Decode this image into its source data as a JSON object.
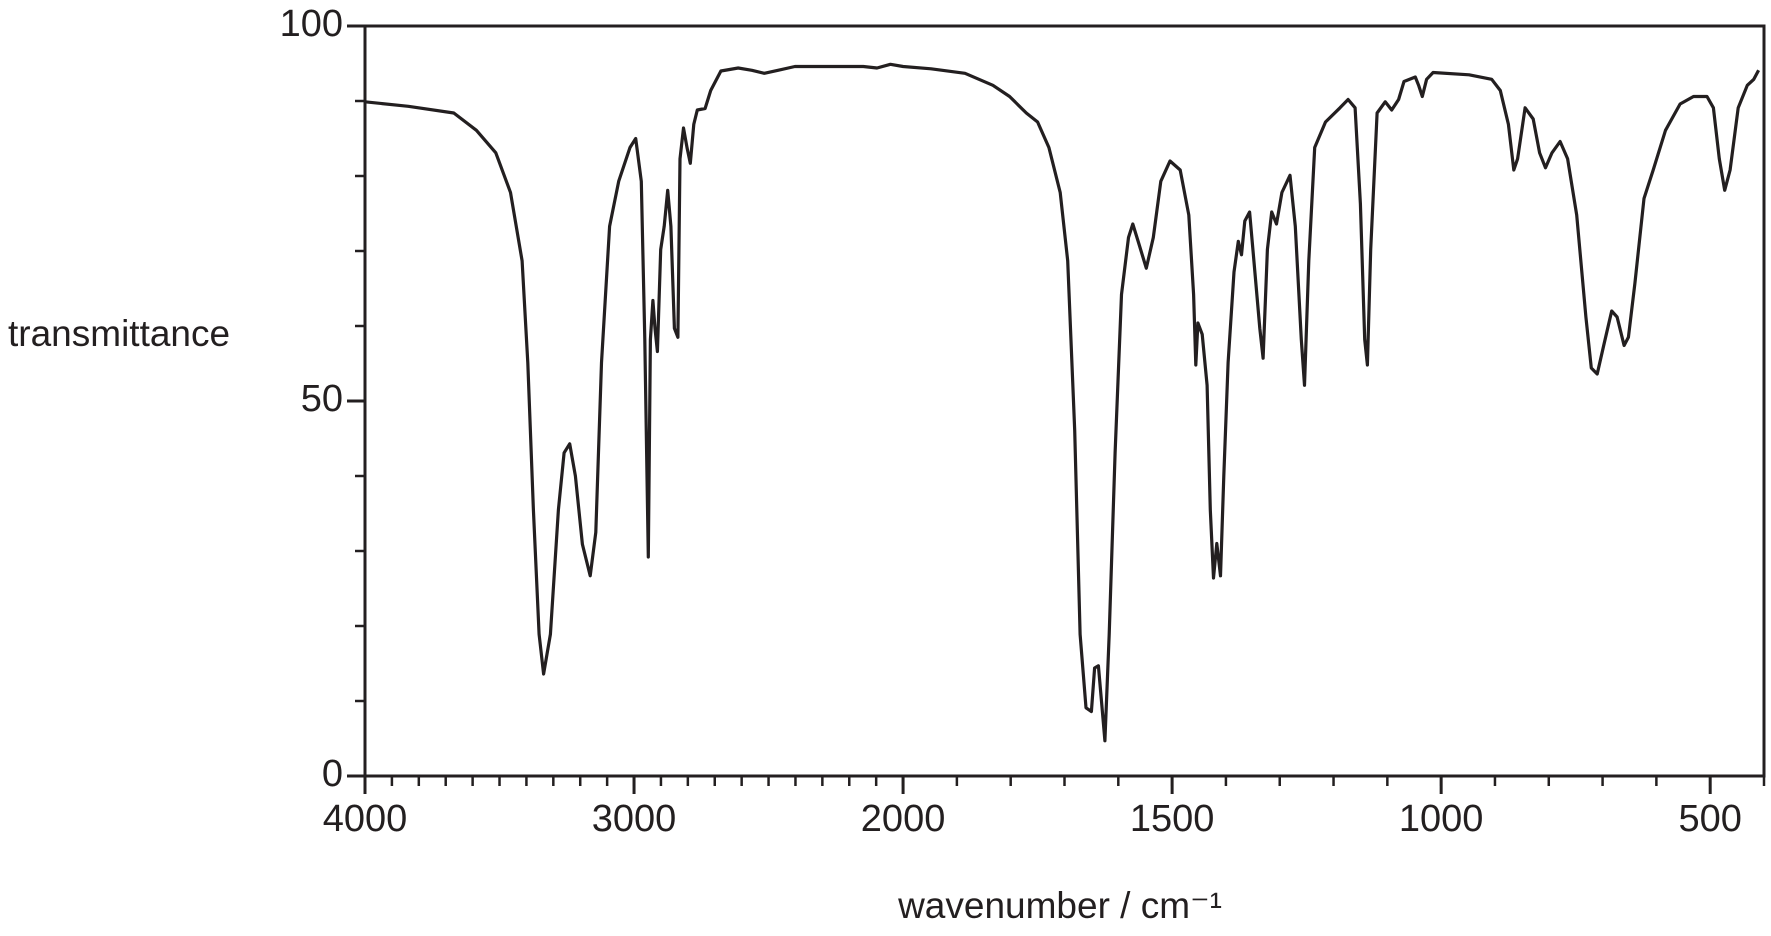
{
  "chart_data": {
    "type": "line",
    "xlabel": "wavenumber / cm⁻¹",
    "ylabel": "transmittance",
    "xlim": [
      4000,
      400
    ],
    "xticks": [
      4000,
      3000,
      2000,
      1500,
      1000,
      500
    ],
    "x_scale_change": {
      "at": 2000,
      "factor": 2
    },
    "x_minor_step": 100,
    "ylim": [
      0,
      100
    ],
    "yticks": [
      0,
      50,
      100
    ],
    "y_minor_step": 10,
    "grid": false,
    "series": [
      {
        "name": null,
        "color": "#231f20",
        "x": [
          4000,
          3839,
          3670,
          3586,
          3514,
          3459,
          3416,
          3395,
          3374,
          3353,
          3336,
          3311,
          3281,
          3260,
          3239,
          3218,
          3192,
          3163,
          3142,
          3121,
          3091,
          3057,
          3015,
          2994,
          2973,
          2960,
          2947,
          2939,
          2930,
          2922,
          2913,
          2901,
          2888,
          2875,
          2863,
          2850,
          2837,
          2829,
          2816,
          2803,
          2791,
          2778,
          2765,
          2736,
          2715,
          2677,
          2613,
          2562,
          2516,
          2465,
          2402,
          2148,
          2097,
          2047,
          2000,
          1948,
          1885,
          1833,
          1802,
          1771,
          1750,
          1729,
          1708,
          1694,
          1681,
          1671,
          1660,
          1650,
          1644,
          1637,
          1631,
          1625,
          1617,
          1606,
          1594,
          1581,
          1573,
          1562,
          1548,
          1535,
          1521,
          1504,
          1485,
          1469,
          1460,
          1456,
          1452,
          1444,
          1435,
          1429,
          1423,
          1417,
          1410,
          1404,
          1396,
          1385,
          1377,
          1371,
          1365,
          1356,
          1348,
          1337,
          1331,
          1323,
          1315,
          1306,
          1296,
          1281,
          1271,
          1260,
          1254,
          1246,
          1235,
          1215,
          1188,
          1173,
          1160,
          1150,
          1142,
          1137,
          1131,
          1119,
          1104,
          1092,
          1079,
          1069,
          1048,
          1042,
          1035,
          1027,
          1015,
          948,
          906,
          890,
          875,
          865,
          858,
          844,
          829,
          817,
          806,
          794,
          779,
          765,
          748,
          731,
          721,
          710,
          698,
          683,
          673,
          660,
          652,
          640,
          623,
          606,
          583,
          556,
          531,
          506,
          494,
          483,
          473,
          463,
          448,
          431,
          419,
          410
        ],
        "values": [
          89.9,
          89.3,
          88.4,
          86.1,
          83.1,
          77.8,
          68.7,
          55.1,
          35.5,
          18.9,
          13.6,
          18.9,
          35.5,
          43.1,
          44.3,
          40.0,
          30.9,
          26.7,
          32.5,
          55.1,
          73.3,
          79.3,
          83.8,
          85.0,
          79.3,
          58.2,
          29.2,
          58.2,
          63.4,
          59.7,
          56.6,
          70.2,
          73.3,
          78.1,
          73.3,
          59.7,
          58.5,
          82.3,
          86.4,
          83.8,
          81.7,
          86.9,
          88.8,
          89.0,
          91.4,
          94.0,
          94.4,
          94.1,
          93.7,
          94.1,
          94.6,
          94.6,
          94.4,
          94.9,
          94.6,
          94.3,
          93.7,
          92.1,
          90.6,
          88.4,
          87.2,
          83.8,
          77.8,
          68.7,
          46.1,
          18.9,
          9.1,
          8.6,
          14.4,
          14.7,
          9.8,
          4.7,
          18.9,
          43.1,
          64.2,
          71.8,
          73.6,
          71.0,
          67.7,
          71.8,
          79.3,
          82.0,
          80.8,
          74.8,
          64.2,
          54.8,
          60.4,
          58.9,
          52.1,
          35.5,
          26.4,
          31.0,
          26.7,
          40.0,
          55.1,
          67.2,
          71.3,
          69.5,
          74.0,
          75.2,
          68.7,
          59.7,
          55.7,
          70.2,
          75.2,
          73.6,
          77.8,
          80.1,
          73.3,
          58.2,
          52.1,
          68.7,
          83.8,
          87.2,
          89.1,
          90.2,
          89.1,
          76.3,
          58.2,
          54.8,
          70.2,
          88.4,
          89.9,
          88.8,
          90.2,
          92.6,
          93.2,
          92.1,
          90.6,
          92.9,
          93.8,
          93.5,
          92.9,
          91.4,
          86.9,
          80.8,
          82.3,
          89.1,
          87.6,
          83.1,
          81.1,
          83.1,
          84.6,
          82.3,
          74.8,
          61.2,
          54.4,
          53.6,
          57.4,
          62.0,
          61.2,
          57.4,
          58.5,
          65.7,
          77.0,
          80.8,
          86.1,
          89.6,
          90.6,
          90.6,
          89.1,
          82.3,
          78.1,
          80.8,
          89.1,
          92.1,
          92.9,
          94.1
        ]
      }
    ]
  }
}
